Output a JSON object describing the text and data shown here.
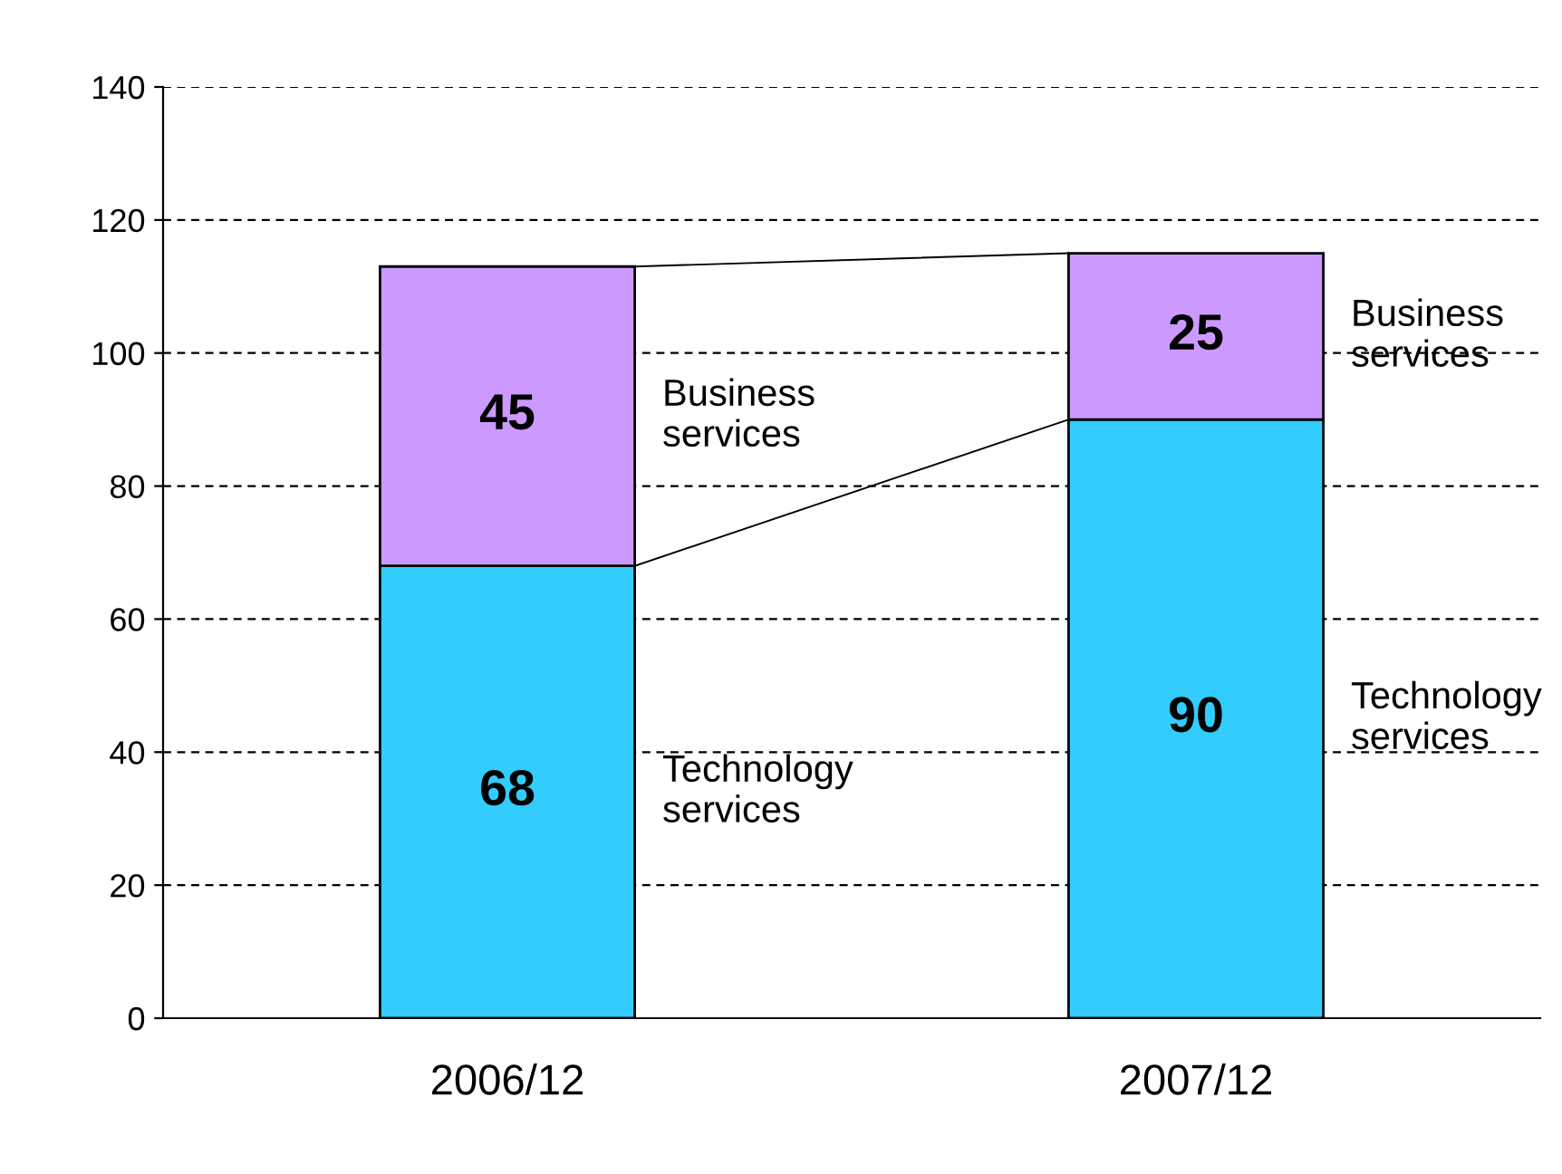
{
  "chart_data": {
    "type": "bar",
    "stacked": true,
    "categories": [
      "2006/12",
      "2007/12"
    ],
    "series": [
      {
        "name": "Technology services",
        "color": "#33ccff",
        "values": [
          68,
          90
        ]
      },
      {
        "name": "Business services",
        "color": "#cc99ff",
        "values": [
          45,
          25
        ]
      }
    ],
    "ylim": [
      0,
      140
    ],
    "yticks": [
      0,
      20,
      40,
      60,
      80,
      100,
      120,
      140
    ],
    "grid": "y",
    "line_style": "dashed",
    "data_labels": true,
    "legend": false
  }
}
